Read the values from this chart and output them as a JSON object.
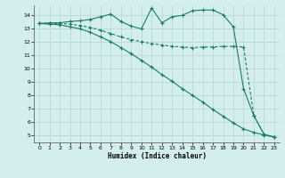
{
  "xlabel": "Humidex (Indice chaleur)",
  "bg_color": "#d4eeee",
  "grid_color": "#b8d8d8",
  "line_color": "#1a7a6a",
  "xlim": [
    -0.5,
    23.5
  ],
  "ylim": [
    4.5,
    14.7
  ],
  "xticks": [
    0,
    1,
    2,
    3,
    4,
    5,
    6,
    7,
    8,
    9,
    10,
    11,
    12,
    13,
    14,
    15,
    16,
    17,
    18,
    19,
    20,
    21,
    22,
    23
  ],
  "yticks": [
    5,
    6,
    7,
    8,
    9,
    10,
    11,
    12,
    13,
    14
  ],
  "series1_x": [
    0,
    1,
    2,
    3,
    4,
    5,
    6,
    7,
    8,
    9,
    10,
    11,
    12,
    13,
    14,
    15,
    16,
    17,
    18,
    19,
    20,
    21,
    22,
    23
  ],
  "series1_y": [
    13.35,
    13.4,
    13.4,
    13.5,
    13.55,
    13.65,
    13.85,
    14.05,
    13.5,
    13.15,
    12.95,
    14.5,
    13.4,
    13.85,
    13.95,
    14.3,
    14.35,
    14.35,
    14.0,
    13.1,
    8.5,
    6.5,
    5.1,
    4.9
  ],
  "series2_x": [
    0,
    1,
    2,
    3,
    4,
    5,
    6,
    7,
    8,
    9,
    10,
    11,
    12,
    13,
    14,
    15,
    16,
    17,
    18,
    19,
    20,
    21,
    22,
    23
  ],
  "series2_y": [
    13.35,
    13.35,
    13.35,
    13.3,
    13.2,
    13.05,
    12.85,
    12.6,
    12.35,
    12.15,
    12.0,
    11.85,
    11.75,
    11.65,
    11.6,
    11.55,
    11.6,
    11.6,
    11.65,
    11.65,
    11.6,
    6.5,
    5.1,
    4.9
  ],
  "series3_x": [
    0,
    1,
    2,
    3,
    4,
    5,
    6,
    7,
    8,
    9,
    10,
    11,
    12,
    13,
    14,
    15,
    16,
    17,
    18,
    19,
    20,
    21,
    22,
    23
  ],
  "series3_y": [
    13.35,
    13.3,
    13.25,
    13.1,
    12.95,
    12.7,
    12.35,
    12.0,
    11.55,
    11.1,
    10.6,
    10.1,
    9.55,
    9.05,
    8.5,
    8.0,
    7.5,
    6.95,
    6.45,
    5.95,
    5.5,
    5.25,
    5.05,
    4.9
  ]
}
